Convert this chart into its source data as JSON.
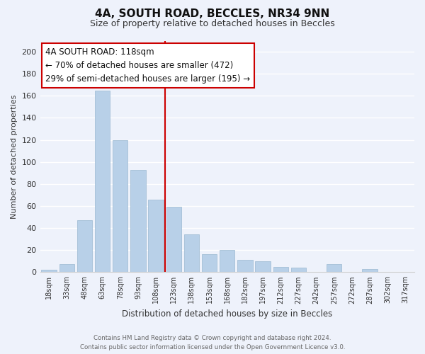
{
  "title": "4A, SOUTH ROAD, BECCLES, NR34 9NN",
  "subtitle": "Size of property relative to detached houses in Beccles",
  "xlabel": "Distribution of detached houses by size in Beccles",
  "ylabel": "Number of detached properties",
  "bin_labels": [
    "18sqm",
    "33sqm",
    "48sqm",
    "63sqm",
    "78sqm",
    "93sqm",
    "108sqm",
    "123sqm",
    "138sqm",
    "153sqm",
    "168sqm",
    "182sqm",
    "197sqm",
    "212sqm",
    "227sqm",
    "242sqm",
    "257sqm",
    "272sqm",
    "287sqm",
    "302sqm",
    "317sqm"
  ],
  "bar_values": [
    2,
    7,
    47,
    165,
    120,
    93,
    66,
    59,
    34,
    16,
    20,
    11,
    10,
    5,
    4,
    0,
    7,
    0,
    3,
    0,
    0
  ],
  "bar_color": "#b8d0e8",
  "bar_edge_color": "#9ab8d0",
  "vline_color": "#cc0000",
  "ylim": [
    0,
    210
  ],
  "yticks": [
    0,
    20,
    40,
    60,
    80,
    100,
    120,
    140,
    160,
    180,
    200
  ],
  "annotation_title": "4A SOUTH ROAD: 118sqm",
  "annotation_line1": "← 70% of detached houses are smaller (472)",
  "annotation_line2": "29% of semi-detached houses are larger (195) →",
  "annotation_box_color": "#ffffff",
  "annotation_box_edge": "#cc0000",
  "footer1": "Contains HM Land Registry data © Crown copyright and database right 2024.",
  "footer2": "Contains public sector information licensed under the Open Government Licence v3.0.",
  "background_color": "#eef2fb",
  "grid_color": "#ffffff"
}
